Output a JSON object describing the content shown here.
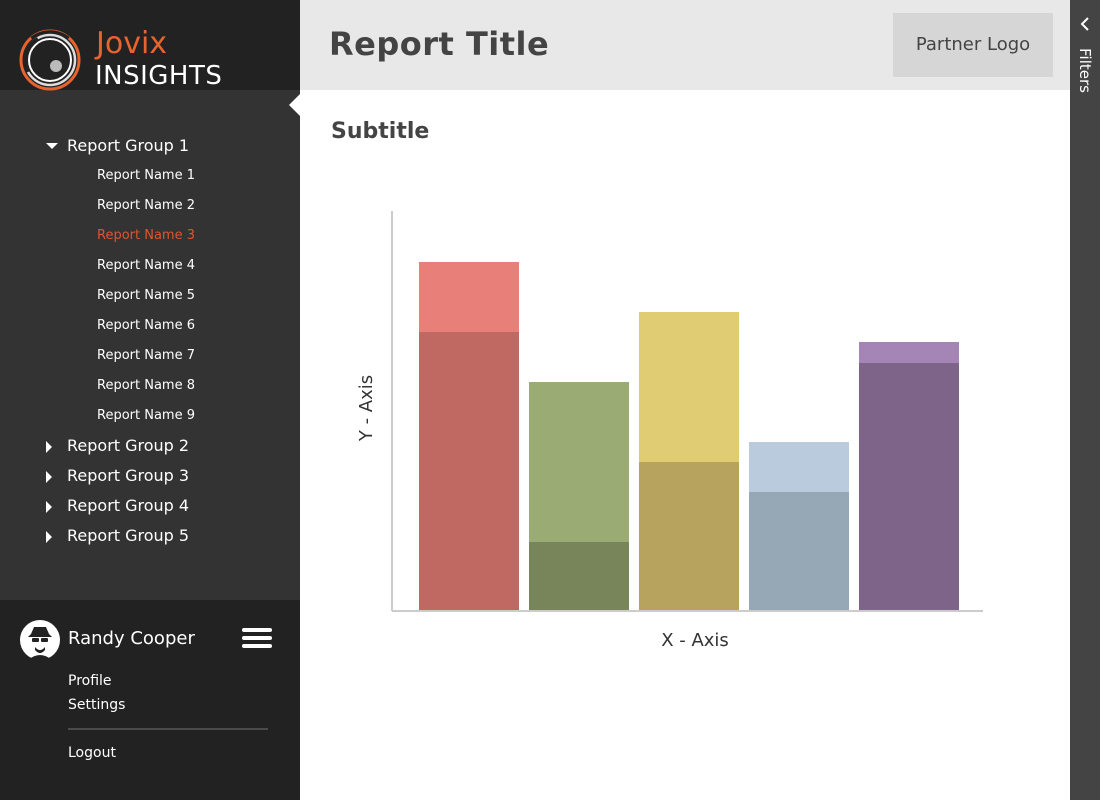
{
  "brand": {
    "name": "Jovix",
    "subname": "INSIGHTS"
  },
  "header": {
    "title": "Report Title",
    "partner_logo": "Partner Logo"
  },
  "main": {
    "subtitle": "Subtitle"
  },
  "filters": {
    "label": "Filters"
  },
  "sidebar": {
    "groups": [
      {
        "label": "Report Group 1",
        "expanded": true,
        "items": [
          {
            "label": "Report Name 1"
          },
          {
            "label": "Report Name 2"
          },
          {
            "label": "Report Name 3",
            "active": true
          },
          {
            "label": "Report Name 4"
          },
          {
            "label": "Report Name 5"
          },
          {
            "label": "Report Name 6"
          },
          {
            "label": "Report Name 7"
          },
          {
            "label": "Report Name 8"
          },
          {
            "label": "Report Name 9"
          }
        ]
      },
      {
        "label": "Report Group 2",
        "expanded": false
      },
      {
        "label": "Report Group 3",
        "expanded": false
      },
      {
        "label": "Report Group 4",
        "expanded": false
      },
      {
        "label": "Report Group 5",
        "expanded": false
      }
    ]
  },
  "user": {
    "name": "Randy Cooper",
    "links": {
      "profile": "Profile",
      "settings": "Settings",
      "logout": "Logout"
    }
  },
  "colors": {
    "accent": "#e0542f",
    "sidebar": "#333333",
    "header": "#e8e8e8"
  },
  "chart_data": {
    "type": "bar",
    "stacked": true,
    "xlabel": "X - Axis",
    "ylabel": "Y - Axis",
    "ylim": [
      0,
      400
    ],
    "grid": false,
    "categories": [
      "",
      "",
      "",
      "",
      ""
    ],
    "series": [
      {
        "values": [
          279,
          69,
          149,
          119,
          248
        ],
        "colors": [
          "#c06862",
          "#78855a",
          "#b8a35e",
          "#96a7b5",
          "#7e6489"
        ]
      },
      {
        "values": [
          70,
          160,
          150,
          50,
          21
        ],
        "colors": [
          "#e87f78",
          "#9aab74",
          "#e0cc72",
          "#b9cbdc",
          "#a585b5"
        ]
      }
    ]
  }
}
